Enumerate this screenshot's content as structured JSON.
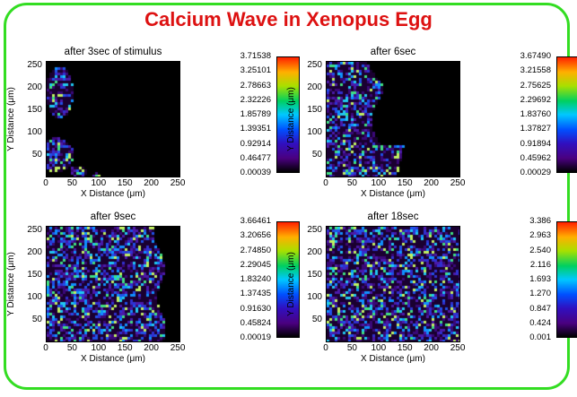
{
  "title": "Calcium Wave in Xenopus Egg",
  "colors": {
    "title": "#dd1111",
    "frame": "#33dd22"
  },
  "panels": [
    {
      "title": "after 3sec of stimulus",
      "xlabel": "X Distance (μm)",
      "ylabel": "Y Distance (μm)",
      "yticks": [
        "250",
        "200",
        "150",
        "100",
        "50"
      ],
      "xticks": [
        "0",
        "50",
        "100",
        "150",
        "200",
        "250"
      ],
      "colorbar": [
        "3.71538",
        "3.25101",
        "2.78663",
        "2.32226",
        "1.85789",
        "1.39351",
        "0.92914",
        "0.46477",
        "0.00039"
      ],
      "coverage": "two lobes at left edge"
    },
    {
      "title": "after 6sec",
      "xlabel": "X Distance (μm)",
      "ylabel": "Y Distance (μm)",
      "yticks": [
        "250",
        "200",
        "150",
        "100",
        "50"
      ],
      "xticks": [
        "0",
        "50",
        "100",
        "150",
        "200",
        "250"
      ],
      "colorbar": [
        "3.67490",
        "3.21558",
        "2.75625",
        "2.29692",
        "1.83760",
        "1.37827",
        "0.91894",
        "0.45962",
        "0.00029"
      ],
      "coverage": "left half"
    },
    {
      "title": "after 9sec",
      "xlabel": "X Distance (μm)",
      "ylabel": "Y Distance (μm)",
      "yticks": [
        "250",
        "200",
        "150",
        "100",
        "50"
      ],
      "xticks": [
        "0",
        "50",
        "100",
        "150",
        "200",
        "250"
      ],
      "colorbar": [
        "3.66461",
        "3.20656",
        "2.74850",
        "2.29045",
        "1.83240",
        "1.37435",
        "0.91630",
        "0.45824",
        "0.00019"
      ],
      "coverage": "most of field"
    },
    {
      "title": "after 18sec",
      "xlabel": "X Distance (μm)",
      "ylabel": "Y Distance (μm)",
      "yticks": [
        "250",
        "200",
        "150",
        "100",
        "50"
      ],
      "xticks": [
        "0",
        "50",
        "100",
        "150",
        "200",
        "250"
      ],
      "colorbar": [
        "3.386",
        "2.963",
        "2.540",
        "2.116",
        "1.693",
        "1.270",
        "0.847",
        "0.424",
        "0.001"
      ],
      "coverage": "entire field"
    }
  ]
}
